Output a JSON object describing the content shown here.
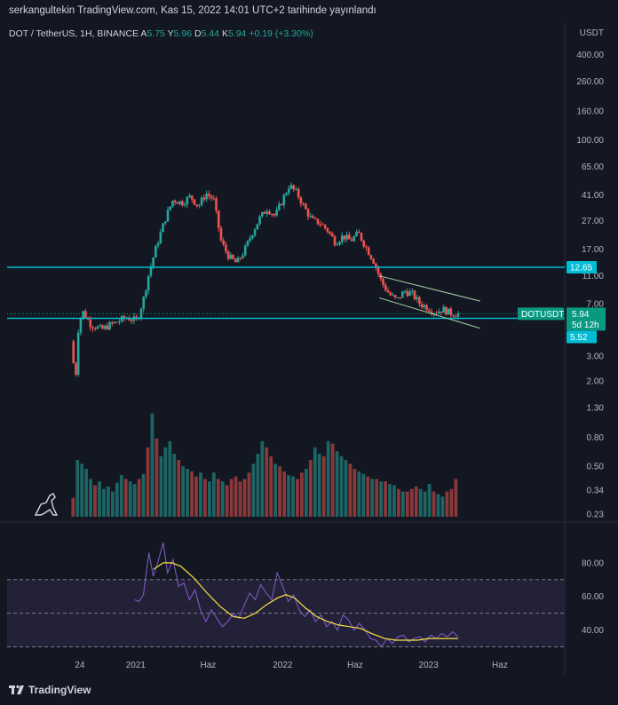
{
  "header": {
    "published_line": "serkangultekin TradingView.com, Kas 15, 2022 14:01 UTC+2 tarihinde yayınlandı"
  },
  "legend": {
    "symbol": "DOT / TetherUS, 1H, BINANCE",
    "open_label": "A",
    "open": "5.75",
    "high_label": "Y",
    "high": "5.96",
    "low_label": "D",
    "low": "5.44",
    "close_label": "K",
    "close": "5.94",
    "change": "+0.19 (+3.30%)"
  },
  "price_axis": {
    "unit": "USDT",
    "ticks": [
      "400.00",
      "260.00",
      "160.00",
      "100.00",
      "65.00",
      "41.00",
      "27.00",
      "17.00",
      "11.00",
      "7.00",
      "3.00",
      "2.00",
      "1.30",
      "0.80",
      "0.50",
      "0.34",
      "0.23"
    ],
    "badges": {
      "resistance": "12.65",
      "symbol": "DOTUSDT",
      "last_price": "5.94",
      "countdown": "5d 12h",
      "support": "5.52"
    }
  },
  "rsi_axis": {
    "ticks": [
      "80.00",
      "60.00",
      "40.00"
    ]
  },
  "time_axis": {
    "ticks": [
      "24",
      "2021",
      "Haz",
      "2022",
      "Haz",
      "2023",
      "Haz"
    ]
  },
  "footer": {
    "brand": "TradingView"
  },
  "colors": {
    "background": "#131722",
    "bull": "#26a69a",
    "bear": "#ef5350",
    "level_line": "#00bcd4",
    "channel": "#a5d6a7",
    "rsi": "#7e57c2",
    "rsi_ma": "#f5e342",
    "rsi_band": "#2a2540",
    "badge_level": "#00bcd4",
    "badge_symbol": "#089981"
  },
  "chart_data": {
    "type": "candlestick",
    "symbol": "DOT / TetherUS",
    "interval": "1H",
    "exchange": "BINANCE",
    "y_scale": "log",
    "price_range": [
      0.22,
      500
    ],
    "horizontal_levels": [
      12.65,
      5.52
    ],
    "last_price": 5.94,
    "price_path": [
      {
        "x": 0.0,
        "p": 3.8
      },
      {
        "x": 0.4,
        "p": 2.0
      },
      {
        "x": 0.7,
        "p": 5.2
      },
      {
        "x": 1.1,
        "p": 6.1
      },
      {
        "x": 1.8,
        "p": 5.0
      },
      {
        "x": 2.8,
        "p": 4.6
      },
      {
        "x": 3.4,
        "p": 4.9
      },
      {
        "x": 4.2,
        "p": 5.2
      },
      {
        "x": 5.0,
        "p": 5.6
      },
      {
        "x": 6.0,
        "p": 5.3
      },
      {
        "x": 6.6,
        "p": 7.5
      },
      {
        "x": 7.1,
        "p": 11.5
      },
      {
        "x": 7.8,
        "p": 18.0
      },
      {
        "x": 8.6,
        "p": 28.0
      },
      {
        "x": 9.3,
        "p": 38.0
      },
      {
        "x": 10.1,
        "p": 36.0
      },
      {
        "x": 10.9,
        "p": 40.0
      },
      {
        "x": 11.6,
        "p": 34.0
      },
      {
        "x": 12.3,
        "p": 42.0
      },
      {
        "x": 13.0,
        "p": 38.0
      },
      {
        "x": 13.7,
        "p": 19.0
      },
      {
        "x": 14.4,
        "p": 15.0
      },
      {
        "x": 15.1,
        "p": 13.5
      },
      {
        "x": 15.8,
        "p": 16.5
      },
      {
        "x": 16.5,
        "p": 22.0
      },
      {
        "x": 17.2,
        "p": 28.0
      },
      {
        "x": 17.9,
        "p": 33.0
      },
      {
        "x": 18.6,
        "p": 29.0
      },
      {
        "x": 19.3,
        "p": 38.0
      },
      {
        "x": 19.9,
        "p": 48.0
      },
      {
        "x": 20.6,
        "p": 42.0
      },
      {
        "x": 21.3,
        "p": 33.0
      },
      {
        "x": 22.0,
        "p": 27.0
      },
      {
        "x": 22.7,
        "p": 26.0
      },
      {
        "x": 23.4,
        "p": 23.0
      },
      {
        "x": 24.1,
        "p": 19.0
      },
      {
        "x": 24.8,
        "p": 21.0
      },
      {
        "x": 25.5,
        "p": 19.5
      },
      {
        "x": 26.2,
        "p": 22.0
      },
      {
        "x": 26.9,
        "p": 17.5
      },
      {
        "x": 27.6,
        "p": 14.0
      },
      {
        "x": 28.3,
        "p": 10.0
      },
      {
        "x": 29.0,
        "p": 8.2
      },
      {
        "x": 29.7,
        "p": 7.4
      },
      {
        "x": 30.4,
        "p": 8.6
      },
      {
        "x": 31.1,
        "p": 8.2
      },
      {
        "x": 31.8,
        "p": 7.0
      },
      {
        "x": 32.5,
        "p": 6.6
      },
      {
        "x": 33.2,
        "p": 6.1
      },
      {
        "x": 33.9,
        "p": 6.4
      },
      {
        "x": 34.6,
        "p": 6.0
      },
      {
        "x": 35.3,
        "p": 5.94
      }
    ],
    "volume_profile": [
      0.15,
      0.45,
      0.42,
      0.38,
      0.3,
      0.25,
      0.28,
      0.22,
      0.24,
      0.2,
      0.27,
      0.33,
      0.3,
      0.28,
      0.26,
      0.3,
      0.34,
      0.55,
      0.82,
      0.62,
      0.48,
      0.55,
      0.6,
      0.5,
      0.45,
      0.4,
      0.38,
      0.36,
      0.32,
      0.35,
      0.3,
      0.28,
      0.35,
      0.3,
      0.28,
      0.25,
      0.3,
      0.32,
      0.28,
      0.3,
      0.35,
      0.42,
      0.5,
      0.6,
      0.55,
      0.48,
      0.42,
      0.4,
      0.36,
      0.33,
      0.32,
      0.3,
      0.35,
      0.38,
      0.45,
      0.55,
      0.5,
      0.48,
      0.6,
      0.58,
      0.52,
      0.48,
      0.45,
      0.42,
      0.38,
      0.36,
      0.34,
      0.32,
      0.3,
      0.3,
      0.28,
      0.28,
      0.26,
      0.25,
      0.22,
      0.2,
      0.2,
      0.22,
      0.24,
      0.22,
      0.2,
      0.26,
      0.2,
      0.18,
      0.16,
      0.2,
      0.22,
      0.3
    ],
    "rsi": {
      "range": [
        25,
        100
      ],
      "levels": [
        70,
        50,
        30
      ],
      "ma_path": [
        {
          "x": 7.5,
          "v": 76
        },
        {
          "x": 8.4,
          "v": 80
        },
        {
          "x": 9.2,
          "v": 80
        },
        {
          "x": 10.0,
          "v": 78
        },
        {
          "x": 11.2,
          "v": 71
        },
        {
          "x": 12.4,
          "v": 62
        },
        {
          "x": 13.6,
          "v": 54
        },
        {
          "x": 14.8,
          "v": 48
        },
        {
          "x": 15.8,
          "v": 47
        },
        {
          "x": 16.8,
          "v": 50
        },
        {
          "x": 17.8,
          "v": 55
        },
        {
          "x": 18.8,
          "v": 59
        },
        {
          "x": 19.6,
          "v": 61
        },
        {
          "x": 20.4,
          "v": 59
        },
        {
          "x": 21.4,
          "v": 53
        },
        {
          "x": 22.4,
          "v": 48
        },
        {
          "x": 23.4,
          "v": 45
        },
        {
          "x": 24.4,
          "v": 43
        },
        {
          "x": 25.4,
          "v": 42
        },
        {
          "x": 26.4,
          "v": 41
        },
        {
          "x": 27.4,
          "v": 38
        },
        {
          "x": 28.6,
          "v": 35
        },
        {
          "x": 29.6,
          "v": 34
        },
        {
          "x": 30.6,
          "v": 34
        },
        {
          "x": 31.6,
          "v": 34
        },
        {
          "x": 32.6,
          "v": 35
        },
        {
          "x": 33.6,
          "v": 35
        },
        {
          "x": 34.6,
          "v": 35
        },
        {
          "x": 35.3,
          "v": 35
        }
      ],
      "line_path": [
        {
          "x": 5.8,
          "v": 58
        },
        {
          "x": 6.2,
          "v": 57
        },
        {
          "x": 6.6,
          "v": 61
        },
        {
          "x": 7.1,
          "v": 86
        },
        {
          "x": 7.5,
          "v": 72
        },
        {
          "x": 7.9,
          "v": 80
        },
        {
          "x": 8.4,
          "v": 92
        },
        {
          "x": 8.8,
          "v": 74
        },
        {
          "x": 9.3,
          "v": 82
        },
        {
          "x": 9.8,
          "v": 66
        },
        {
          "x": 10.3,
          "v": 68
        },
        {
          "x": 10.8,
          "v": 58
        },
        {
          "x": 11.3,
          "v": 64
        },
        {
          "x": 11.8,
          "v": 52
        },
        {
          "x": 12.3,
          "v": 45
        },
        {
          "x": 12.8,
          "v": 52
        },
        {
          "x": 13.3,
          "v": 47
        },
        {
          "x": 13.8,
          "v": 42
        },
        {
          "x": 14.3,
          "v": 45
        },
        {
          "x": 14.8,
          "v": 50
        },
        {
          "x": 15.3,
          "v": 47
        },
        {
          "x": 15.8,
          "v": 55
        },
        {
          "x": 16.3,
          "v": 62
        },
        {
          "x": 16.8,
          "v": 58
        },
        {
          "x": 17.3,
          "v": 67
        },
        {
          "x": 17.8,
          "v": 62
        },
        {
          "x": 18.3,
          "v": 58
        },
        {
          "x": 18.8,
          "v": 74
        },
        {
          "x": 19.3,
          "v": 66
        },
        {
          "x": 19.8,
          "v": 57
        },
        {
          "x": 20.3,
          "v": 61
        },
        {
          "x": 20.8,
          "v": 52
        },
        {
          "x": 21.3,
          "v": 48
        },
        {
          "x": 21.8,
          "v": 52
        },
        {
          "x": 22.3,
          "v": 45
        },
        {
          "x": 22.8,
          "v": 49
        },
        {
          "x": 23.3,
          "v": 42
        },
        {
          "x": 23.8,
          "v": 45
        },
        {
          "x": 24.3,
          "v": 40
        },
        {
          "x": 24.8,
          "v": 49
        },
        {
          "x": 25.3,
          "v": 46
        },
        {
          "x": 25.8,
          "v": 40
        },
        {
          "x": 26.3,
          "v": 44
        },
        {
          "x": 26.8,
          "v": 40
        },
        {
          "x": 27.3,
          "v": 35
        },
        {
          "x": 27.8,
          "v": 34
        },
        {
          "x": 28.3,
          "v": 30
        },
        {
          "x": 28.8,
          "v": 35
        },
        {
          "x": 29.3,
          "v": 32
        },
        {
          "x": 29.8,
          "v": 36
        },
        {
          "x": 30.3,
          "v": 37
        },
        {
          "x": 30.8,
          "v": 33
        },
        {
          "x": 31.3,
          "v": 35
        },
        {
          "x": 31.8,
          "v": 36
        },
        {
          "x": 32.3,
          "v": 33
        },
        {
          "x": 32.8,
          "v": 37
        },
        {
          "x": 33.3,
          "v": 35
        },
        {
          "x": 33.8,
          "v": 38
        },
        {
          "x": 34.3,
          "v": 36
        },
        {
          "x": 34.8,
          "v": 39
        },
        {
          "x": 35.3,
          "v": 36
        }
      ]
    }
  }
}
